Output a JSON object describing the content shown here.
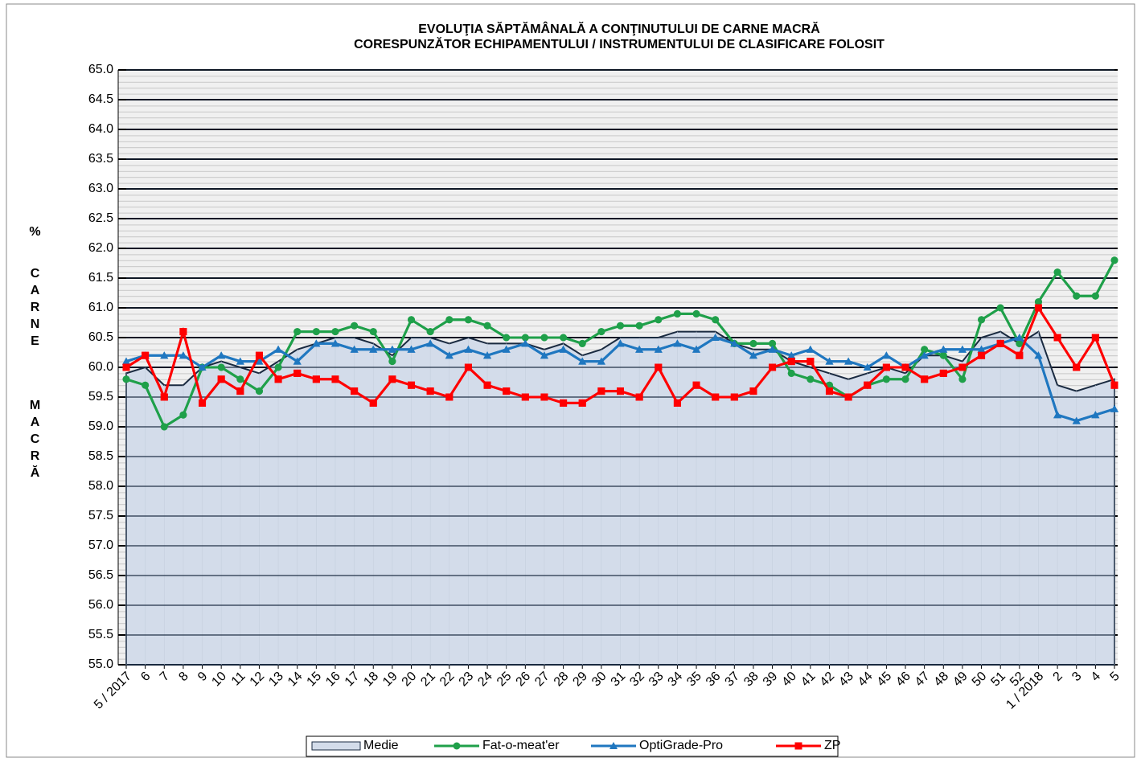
{
  "chart_data": {
    "type": "line",
    "title": [
      "EVOLUŢIA SĂPTĂMÂNALĂ  A CONŢINUTULUI DE CARNE MACRĂ",
      "CORESPUNZĂTOR   ECHIPAMENTULUI /  INSTRUMENTULUI DE CLASIFICARE FOLOSIT"
    ],
    "y_label": [
      "%",
      "CARNE",
      "MACRĂ"
    ],
    "categories": [
      "5 / 2017",
      "6",
      "7",
      "8",
      "9",
      "10",
      "11",
      "12",
      "13",
      "14",
      "15",
      "16",
      "17",
      "18",
      "19",
      "20",
      "21",
      "22",
      "23",
      "24",
      "25",
      "26",
      "27",
      "28",
      "29",
      "30",
      "31",
      "32",
      "33",
      "34",
      "35",
      "36",
      "37",
      "38",
      "39",
      "40",
      "41",
      "42",
      "43",
      "44",
      "45",
      "46",
      "47",
      "48",
      "49",
      "50",
      "51",
      "52",
      "1 / 2018",
      "2",
      "3",
      "4",
      "5"
    ],
    "series": [
      {
        "name": "Medie",
        "kind": "area",
        "color": "#1a2a40",
        "fill": "#d3dcea",
        "values": [
          59.9,
          60.0,
          59.7,
          59.7,
          60.0,
          60.1,
          60.0,
          59.9,
          60.1,
          60.3,
          60.4,
          60.5,
          60.5,
          60.4,
          60.2,
          60.5,
          60.5,
          60.4,
          60.5,
          60.4,
          60.4,
          60.4,
          60.3,
          60.4,
          60.2,
          60.3,
          60.5,
          60.5,
          60.5,
          60.6,
          60.6,
          60.6,
          60.4,
          60.3,
          60.3,
          60.1,
          60.0,
          59.9,
          59.8,
          59.9,
          60.0,
          59.9,
          60.2,
          60.2,
          60.1,
          60.5,
          60.6,
          60.4,
          60.6,
          59.7,
          59.6,
          59.7,
          59.8
        ]
      },
      {
        "name": "Fat-o-meat'er",
        "kind": "line",
        "marker": "circle",
        "color": "#1fa04a",
        "values": [
          59.8,
          59.7,
          59.0,
          59.2,
          60.0,
          60.0,
          59.8,
          59.6,
          60.0,
          60.6,
          60.6,
          60.6,
          60.7,
          60.6,
          60.1,
          60.8,
          60.6,
          60.8,
          60.8,
          60.7,
          60.5,
          60.5,
          60.5,
          60.5,
          60.4,
          60.6,
          60.7,
          60.7,
          60.8,
          60.9,
          60.9,
          60.8,
          60.4,
          60.4,
          60.4,
          59.9,
          59.8,
          59.7,
          59.5,
          59.7,
          59.8,
          59.8,
          60.3,
          60.2,
          59.8,
          60.8,
          61.0,
          60.4,
          61.1,
          61.6,
          61.2,
          61.2,
          61.8
        ]
      },
      {
        "name": "OptiGrade-Pro",
        "kind": "line",
        "marker": "triangle",
        "color": "#1f77c0",
        "values": [
          60.1,
          60.2,
          60.2,
          60.2,
          60.0,
          60.2,
          60.1,
          60.1,
          60.3,
          60.1,
          60.4,
          60.4,
          60.3,
          60.3,
          60.3,
          60.3,
          60.4,
          60.2,
          60.3,
          60.2,
          60.3,
          60.4,
          60.2,
          60.3,
          60.1,
          60.1,
          60.4,
          60.3,
          60.3,
          60.4,
          60.3,
          60.5,
          60.4,
          60.2,
          60.3,
          60.2,
          60.3,
          60.1,
          60.1,
          60.0,
          60.2,
          60.0,
          60.2,
          60.3,
          60.3,
          60.3,
          60.4,
          60.5,
          60.2,
          59.2,
          59.1,
          59.2,
          59.3
        ]
      },
      {
        "name": "ZP",
        "kind": "line",
        "marker": "square",
        "color": "#ff0000",
        "values": [
          60.0,
          60.2,
          59.5,
          60.6,
          59.4,
          59.8,
          59.6,
          60.2,
          59.8,
          59.9,
          59.8,
          59.8,
          59.6,
          59.4,
          59.8,
          59.7,
          59.6,
          59.5,
          60.0,
          59.7,
          59.6,
          59.5,
          59.5,
          59.4,
          59.4,
          59.6,
          59.6,
          59.5,
          60.0,
          59.4,
          59.7,
          59.5,
          59.5,
          59.6,
          60.0,
          60.1,
          60.1,
          59.6,
          59.5,
          59.7,
          60.0,
          60.0,
          59.8,
          59.9,
          60.0,
          60.2,
          60.4,
          60.2,
          61.0,
          60.5,
          60.0,
          60.5,
          59.7
        ]
      }
    ],
    "ylim": [
      55,
      65
    ],
    "yticks": [
      {
        "value": 55,
        "label": "55.0"
      },
      {
        "value": 55.5,
        "label": "55.5"
      },
      {
        "value": 56,
        "label": "56.0"
      },
      {
        "value": 56.5,
        "label": "56.5"
      },
      {
        "value": 57,
        "label": "57.0"
      },
      {
        "value": 57.5,
        "label": "57.5"
      },
      {
        "value": 58,
        "label": "58.0"
      },
      {
        "value": 58.5,
        "label": "58.5"
      },
      {
        "value": 59,
        "label": "59.0"
      },
      {
        "value": 59.5,
        "label": "59.5"
      },
      {
        "value": 60,
        "label": "60.0"
      },
      {
        "value": 60.5,
        "label": "60.5"
      },
      {
        "value": 61,
        "label": "61.0"
      },
      {
        "value": 61.5,
        "label": "61.5"
      },
      {
        "value": 62,
        "label": "62.0"
      },
      {
        "value": 62.5,
        "label": "62.5"
      },
      {
        "value": 63,
        "label": "63.0"
      },
      {
        "value": 63.5,
        "label": "63.5"
      },
      {
        "value": 64,
        "label": "64.0"
      },
      {
        "value": 64.5,
        "label": "64.5"
      },
      {
        "value": 65,
        "label": "65.0"
      }
    ],
    "grid": true,
    "legend": "bottom"
  }
}
